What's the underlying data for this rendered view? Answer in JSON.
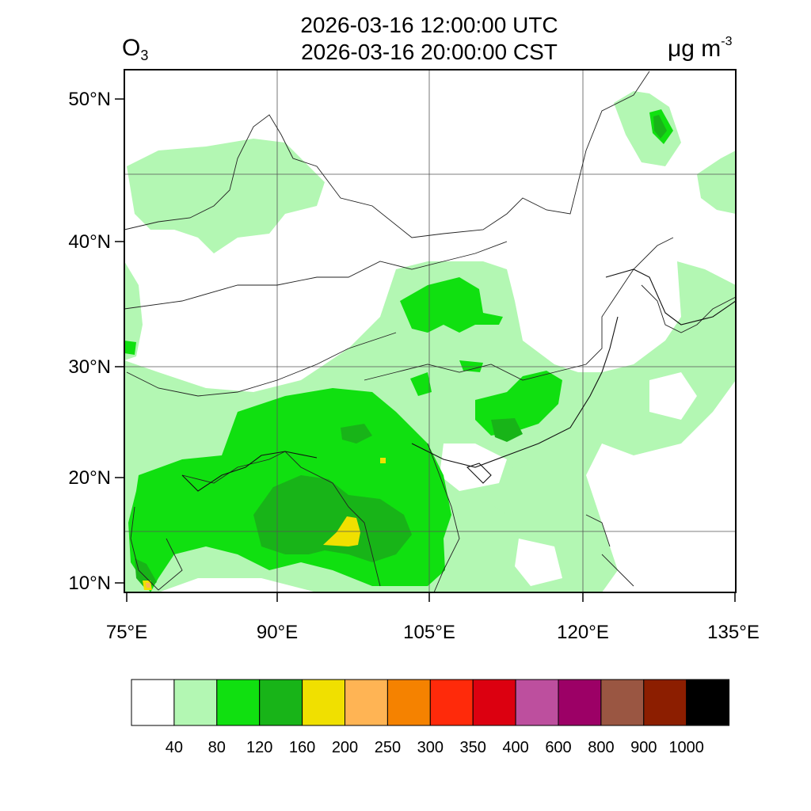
{
  "header": {
    "title_utc": "2026-03-16 12:00:00 UTC",
    "title_local": "2026-03-16 20:00:00 CST",
    "variable": "O",
    "variable_subscript": "3",
    "unit_prefix": "μg m",
    "unit_exponent": "-3"
  },
  "axes": {
    "lat_labels": [
      "50°N",
      "40°N",
      "30°N",
      "20°N",
      "10°N"
    ],
    "lon_labels": [
      "75°E",
      "90°E",
      "105°E",
      "120°E",
      "135°E"
    ]
  },
  "colorbar": {
    "colors": [
      "#ffffff",
      "#b3f7b3",
      "#10e010",
      "#18b418",
      "#f0e000",
      "#ffb454",
      "#f58200",
      "#ff2a0a",
      "#dc0010",
      "#bd4f9e",
      "#9c0066",
      "#9a5642",
      "#8c1e00",
      "#000000"
    ],
    "labels": [
      "40",
      "80",
      "120",
      "160",
      "200",
      "250",
      "300",
      "350",
      "400",
      "600",
      "800",
      "900",
      "1000"
    ]
  },
  "field_colors": {
    "ocean_bg": "#ffffff",
    "light": "#b3f7b3",
    "medium": "#10e010",
    "dark": "#18b418",
    "yellow": "#f0e000",
    "orange": "#ffb454"
  }
}
